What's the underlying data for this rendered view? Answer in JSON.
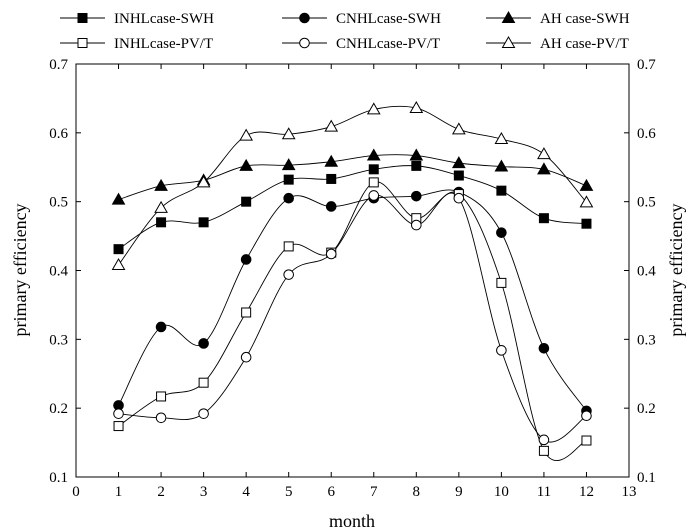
{
  "chart_data": {
    "type": "line",
    "xlabel": "month",
    "ylabel": "primary efficiency",
    "ylabel_right": "primary efficiency",
    "xlim": [
      0,
      13
    ],
    "ylim": [
      0.1,
      0.7
    ],
    "x_ticks": [
      "0",
      "1",
      "2",
      "3",
      "4",
      "5",
      "6",
      "7",
      "8",
      "9",
      "10",
      "11",
      "12",
      "13"
    ],
    "y_ticks": [
      "0.1",
      "0.2",
      "0.3",
      "0.4",
      "0.5",
      "0.6",
      "0.7"
    ],
    "y_tick_values": [
      0.1,
      0.2,
      0.3,
      0.4,
      0.5,
      0.6,
      0.7
    ],
    "grid": false,
    "legend_position": "top",
    "x": [
      1,
      2,
      3,
      4,
      5,
      6,
      7,
      8,
      9,
      10,
      11,
      12
    ],
    "series": [
      {
        "name": "INHLcase-SWH",
        "marker": "square-filled",
        "values": [
          0.431,
          0.47,
          0.47,
          0.5,
          0.532,
          0.533,
          0.547,
          0.552,
          0.538,
          0.516,
          0.476,
          0.468
        ]
      },
      {
        "name": "CNHLcase-SWH",
        "marker": "circle-filled",
        "values": [
          0.204,
          0.318,
          0.294,
          0.416,
          0.505,
          0.493,
          0.505,
          0.508,
          0.514,
          0.455,
          0.287,
          0.196
        ]
      },
      {
        "name": "AH case-SWH",
        "marker": "triangle-filled",
        "values": [
          0.503,
          0.523,
          0.531,
          0.552,
          0.553,
          0.558,
          0.567,
          0.567,
          0.556,
          0.551,
          0.547,
          0.523
        ]
      },
      {
        "name": "INHLcase-PV/T",
        "marker": "square-open",
        "values": [
          0.174,
          0.217,
          0.237,
          0.339,
          0.435,
          0.426,
          0.528,
          0.476,
          0.511,
          0.382,
          0.138,
          0.153
        ]
      },
      {
        "name": "CNHLcase-PV/T",
        "marker": "circle-open",
        "values": [
          0.192,
          0.186,
          0.192,
          0.274,
          0.394,
          0.424,
          0.509,
          0.466,
          0.505,
          0.284,
          0.154,
          0.189
        ]
      },
      {
        "name": "AH case-PV/T",
        "marker": "triangle-open",
        "values": [
          0.408,
          0.491,
          0.528,
          0.596,
          0.598,
          0.609,
          0.634,
          0.636,
          0.605,
          0.591,
          0.569,
          0.499
        ]
      }
    ]
  }
}
